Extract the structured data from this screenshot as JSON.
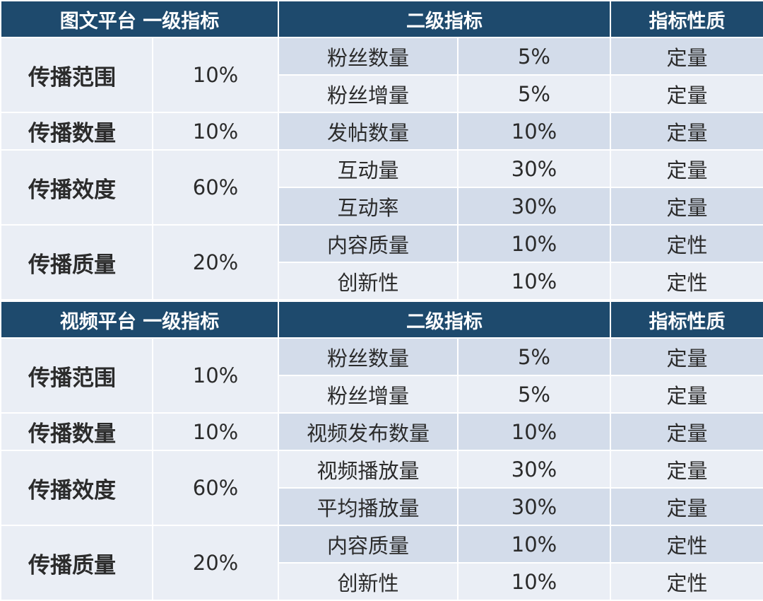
{
  "tables": [
    {
      "header": {
        "primary": "图文平台 一级指标",
        "secondary": "二级指标",
        "nature": "指标性质"
      },
      "groups": [
        {
          "name": "传播范围",
          "weight": "10%",
          "items": [
            {
              "name": "粉丝数量",
              "weight": "5%",
              "nature": "定量"
            },
            {
              "name": "粉丝增量",
              "weight": "5%",
              "nature": "定量"
            }
          ]
        },
        {
          "name": "传播数量",
          "weight": "10%",
          "items": [
            {
              "name": "发帖数量",
              "weight": "10%",
              "nature": "定量"
            }
          ]
        },
        {
          "name": "传播效度",
          "weight": "60%",
          "items": [
            {
              "name": "互动量",
              "weight": "30%",
              "nature": "定量"
            },
            {
              "name": "互动率",
              "weight": "30%",
              "nature": "定量"
            }
          ]
        },
        {
          "name": "传播质量",
          "weight": "20%",
          "items": [
            {
              "name": "内容质量",
              "weight": "10%",
              "nature": "定性"
            },
            {
              "name": "创新性",
              "weight": "10%",
              "nature": "定性"
            }
          ]
        }
      ]
    },
    {
      "header": {
        "primary": "视频平台 一级指标",
        "secondary": "二级指标",
        "nature": "指标性质"
      },
      "groups": [
        {
          "name": "传播范围",
          "weight": "10%",
          "items": [
            {
              "name": "粉丝数量",
              "weight": "5%",
              "nature": "定量"
            },
            {
              "name": "粉丝增量",
              "weight": "5%",
              "nature": "定量"
            }
          ]
        },
        {
          "name": "传播数量",
          "weight": "10%",
          "items": [
            {
              "name": "视频发布数量",
              "weight": "10%",
              "nature": "定量"
            }
          ]
        },
        {
          "name": "传播效度",
          "weight": "60%",
          "items": [
            {
              "name": "视频播放量",
              "weight": "30%",
              "nature": "定量"
            },
            {
              "name": "平均播放量",
              "weight": "30%",
              "nature": "定量"
            }
          ]
        },
        {
          "name": "传播质量",
          "weight": "20%",
          "items": [
            {
              "name": "内容质量",
              "weight": "10%",
              "nature": "定性"
            },
            {
              "name": "创新性",
              "weight": "10%",
              "nature": "定性"
            }
          ]
        }
      ]
    }
  ],
  "colors": {
    "header_bg": "#1e4a6d",
    "cell_dark": "#d3dcea",
    "cell_light": "#eaeef5"
  }
}
